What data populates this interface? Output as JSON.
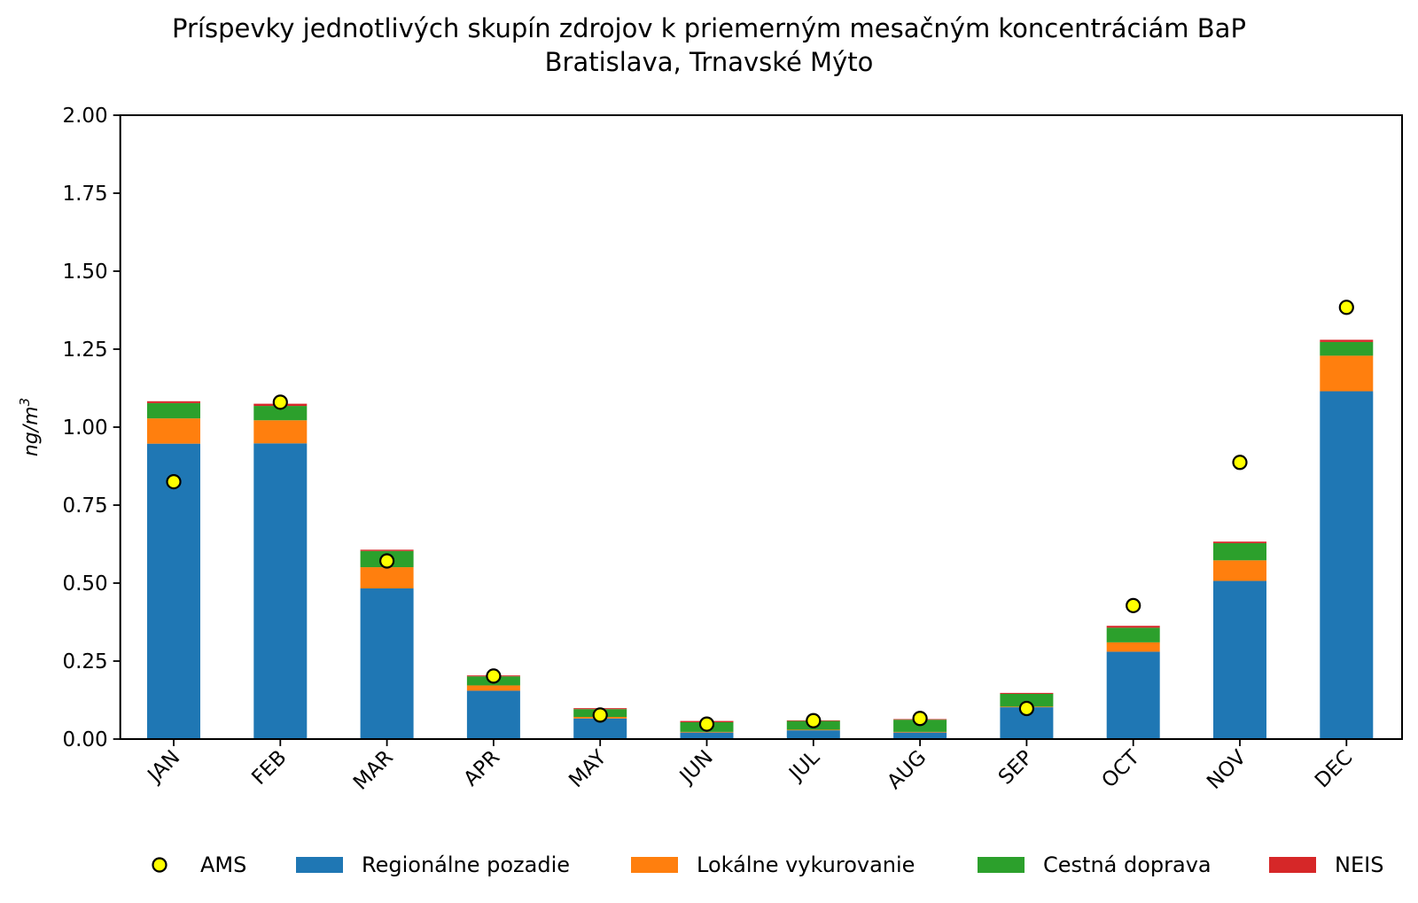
{
  "chart_data": {
    "type": "bar",
    "stacked": true,
    "title": "Príspevky jednotlivých skupín zdrojov k priemerným mesačným koncentráciám BaP",
    "subtitle": "Bratislava, Trnavské Mýto",
    "xlabel": "",
    "ylabel": "ng/m3",
    "ylabel_base": "ng/m",
    "ylabel_sup": "3",
    "ylim": [
      0,
      2.0
    ],
    "yticks": [
      "0.00",
      "0.25",
      "0.50",
      "0.75",
      "1.00",
      "1.25",
      "1.50",
      "1.75",
      "2.00"
    ],
    "ytick_values": [
      0,
      0.25,
      0.5,
      0.75,
      1.0,
      1.25,
      1.5,
      1.75,
      2.0
    ],
    "grid": false,
    "legend_position": "bottom-center",
    "categories": [
      "JAN",
      "FEB",
      "MAR",
      "APR",
      "MAY",
      "JUN",
      "JUL",
      "AUG",
      "SEP",
      "OCT",
      "NOV",
      "DEC"
    ],
    "series": [
      {
        "name": "Regionálne pozadie",
        "color": "#1f77b4",
        "values": [
          0.947,
          0.948,
          0.483,
          0.155,
          0.066,
          0.021,
          0.028,
          0.021,
          0.102,
          0.28,
          0.507,
          1.115
        ]
      },
      {
        "name": "Lokálne vykurovanie",
        "color": "#ff7f0e",
        "values": [
          0.081,
          0.074,
          0.068,
          0.017,
          0.005,
          0.002,
          0.002,
          0.002,
          0.002,
          0.03,
          0.066,
          0.114
        ]
      },
      {
        "name": "Cestná doprava",
        "color": "#2ca02c",
        "values": [
          0.049,
          0.046,
          0.052,
          0.029,
          0.025,
          0.031,
          0.028,
          0.039,
          0.041,
          0.047,
          0.055,
          0.044
        ]
      },
      {
        "name": "NEIS",
        "color": "#d62728",
        "values": [
          0.006,
          0.007,
          0.004,
          0.003,
          0.003,
          0.004,
          0.002,
          0.002,
          0.003,
          0.006,
          0.005,
          0.007
        ]
      }
    ],
    "points": {
      "name": "AMS",
      "color": "#ffff00",
      "edge_color": "#000000",
      "values": [
        0.825,
        1.08,
        0.571,
        0.202,
        0.077,
        0.048,
        0.059,
        0.066,
        0.098,
        0.428,
        0.887,
        1.384
      ]
    },
    "legend": [
      "AMS",
      "Regionálne pozadie",
      "Lokálne vykurovanie",
      "Cestná doprava",
      "NEIS"
    ]
  }
}
